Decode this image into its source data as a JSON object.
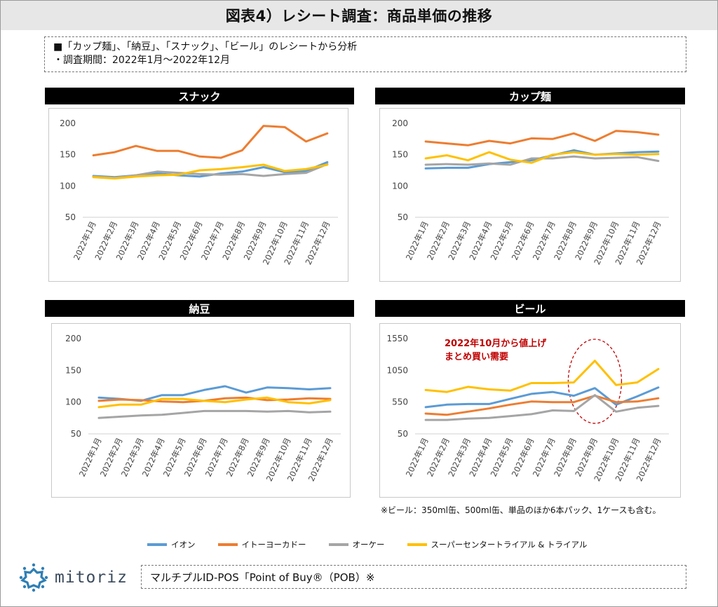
{
  "title": "図表4）レシート調査：商品単価の推移",
  "notes": [
    "■「カップ麺」、「納豆」、「スナック」、「ビール」のレシートから分析",
    "・調査期間：2022年1月〜2022年12月"
  ],
  "series_colors": {
    "イオン": "#5b9bd5",
    "イトーヨーカドー": "#ed7d31",
    "オーケー": "#a5a5a5",
    "スーパーセンタートライアル & トライアル": "#ffc000"
  },
  "legend": [
    {
      "name": "イオン",
      "color": "#5b9bd5"
    },
    {
      "name": "イトーヨーカドー",
      "color": "#ed7d31"
    },
    {
      "name": "オーケー",
      "color": "#a5a5a5"
    },
    {
      "name": "スーパーセンタートライアル & トライアル",
      "color": "#ffc000"
    }
  ],
  "chart_data": [
    {
      "type": "line",
      "title": "スナック",
      "categories": [
        "2022年1月",
        "2022年2月",
        "2022年3月",
        "2022年4月",
        "2022年5月",
        "2022年6月",
        "2022年7月",
        "2022年8月",
        "2022年9月",
        "2022年10月",
        "2022年11月",
        "2022年12月"
      ],
      "ylim": [
        50,
        200
      ],
      "yticks": [
        50,
        100,
        150,
        200
      ],
      "grid": false,
      "series": [
        {
          "name": "イオン",
          "values": [
            116,
            114,
            117,
            120,
            117,
            115,
            120,
            123,
            130,
            122,
            124,
            138
          ]
        },
        {
          "name": "イトーヨーカドー",
          "values": [
            149,
            154,
            164,
            156,
            156,
            147,
            145,
            157,
            196,
            194,
            171,
            184
          ]
        },
        {
          "name": "オーケー",
          "values": [
            115,
            113,
            117,
            123,
            121,
            119,
            118,
            119,
            116,
            119,
            121,
            135
          ]
        },
        {
          "name": "スーパーセンタートライアル & トライアル",
          "values": [
            114,
            112,
            115,
            117,
            118,
            125,
            127,
            130,
            134,
            124,
            127,
            134
          ]
        }
      ]
    },
    {
      "type": "line",
      "title": "カップ麺",
      "categories": [
        "2022年1月",
        "2022年2月",
        "2022年3月",
        "2022年4月",
        "2022年5月",
        "2022年6月",
        "2022年7月",
        "2022年8月",
        "2022年9月",
        "2022年10月",
        "2022年11月",
        "2022年12月"
      ],
      "ylim": [
        50,
        200
      ],
      "yticks": [
        50,
        100,
        150,
        200
      ],
      "grid": false,
      "series": [
        {
          "name": "イオン",
          "values": [
            128,
            129,
            129,
            135,
            138,
            141,
            149,
            157,
            150,
            152,
            154,
            155
          ]
        },
        {
          "name": "イトーヨーカドー",
          "values": [
            171,
            168,
            165,
            172,
            168,
            176,
            175,
            184,
            172,
            188,
            186,
            182
          ]
        },
        {
          "name": "オーケー",
          "values": [
            134,
            135,
            134,
            136,
            134,
            144,
            144,
            147,
            144,
            145,
            146,
            140
          ]
        },
        {
          "name": "スーパーセンタートライアル & トライアル",
          "values": [
            144,
            149,
            141,
            154,
            142,
            137,
            150,
            154,
            150,
            151,
            150,
            151
          ]
        }
      ]
    },
    {
      "type": "line",
      "title": "納豆",
      "categories": [
        "2022年1月",
        "2022年2月",
        "2022年3月",
        "2022年4月",
        "2022年5月",
        "2022年6月",
        "2022年7月",
        "2022年8月",
        "2022年9月",
        "2022年10月",
        "2022年11月",
        "2022年12月"
      ],
      "ylim": [
        50,
        200
      ],
      "yticks": [
        50,
        100,
        150,
        200
      ],
      "grid": false,
      "series": [
        {
          "name": "イオン",
          "values": [
            107,
            105,
            102,
            111,
            111,
            119,
            125,
            115,
            123,
            122,
            120,
            122
          ]
        },
        {
          "name": "イトーヨーカドー",
          "values": [
            102,
            104,
            103,
            101,
            100,
            102,
            106,
            107,
            103,
            104,
            106,
            105
          ]
        },
        {
          "name": "オーケー",
          "values": [
            75,
            77,
            79,
            80,
            83,
            86,
            86,
            86,
            85,
            86,
            84,
            85
          ]
        },
        {
          "name": "スーパーセンタートライアル & トライアル",
          "values": [
            92,
            96,
            96,
            105,
            105,
            102,
            100,
            104,
            107,
            100,
            98,
            103
          ]
        }
      ]
    },
    {
      "type": "line",
      "title": "ビール",
      "categories": [
        "2022年1月",
        "2022年2月",
        "2022年3月",
        "2022年4月",
        "2022年5月",
        "2022年6月",
        "2022年7月",
        "2022年8月",
        "2022年9月",
        "2022年10月",
        "2022年11月",
        "2022年12月"
      ],
      "ylim": [
        50,
        1550
      ],
      "yticks": [
        50,
        550,
        1050,
        1550
      ],
      "grid": false,
      "annotation": {
        "lines": [
          "2022年10月から値上げ",
          "まとめ買い需要"
        ],
        "highlight_category": "2022年9月"
      },
      "series": [
        {
          "name": "イオン",
          "values": [
            470,
            510,
            520,
            520,
            600,
            680,
            710,
            650,
            770,
            510,
            640,
            780
          ]
        },
        {
          "name": "イトーヨーカドー",
          "values": [
            370,
            350,
            400,
            450,
            510,
            560,
            550,
            550,
            650,
            550,
            560,
            610
          ]
        },
        {
          "name": "オーケー",
          "values": [
            270,
            270,
            290,
            300,
            330,
            360,
            420,
            410,
            660,
            400,
            460,
            490
          ]
        },
        {
          "name": "スーパーセンタートライアル & トライアル",
          "values": [
            740,
            710,
            790,
            750,
            730,
            850,
            850,
            860,
            1200,
            820,
            860,
            1070
          ]
        }
      ]
    }
  ],
  "beer_note": "※ビール：350ml缶、500ml缶、単品のほか6本パック、1ケースも含む。",
  "logo_text": "mitoriz",
  "source": "マルチプルID-POS「Point of Buy®（POB）※"
}
